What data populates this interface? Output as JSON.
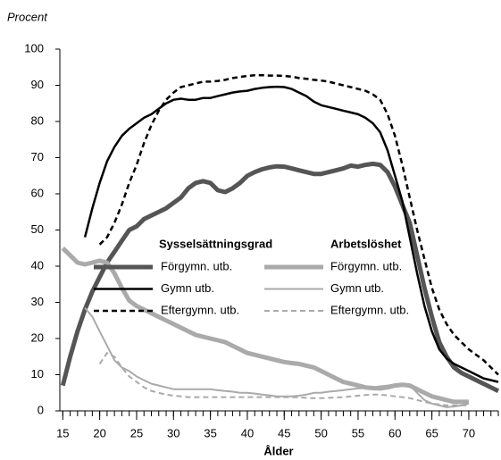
{
  "chart_data": {
    "type": "line",
    "y_label": "Procent",
    "x_label": "Ålder",
    "legend_groups": [
      "Sysselsättningsgrad",
      "Arbetslöshet"
    ],
    "x": [
      15,
      16,
      17,
      18,
      19,
      20,
      21,
      22,
      23,
      24,
      25,
      26,
      27,
      28,
      29,
      30,
      31,
      32,
      33,
      34,
      35,
      36,
      37,
      38,
      39,
      40,
      41,
      42,
      43,
      44,
      45,
      46,
      47,
      48,
      49,
      50,
      51,
      52,
      53,
      54,
      55,
      56,
      57,
      58,
      59,
      60,
      61,
      62,
      63,
      64,
      65,
      66,
      67,
      68,
      69,
      70,
      71,
      72,
      73,
      74
    ],
    "xlim": [
      14.6,
      74
    ],
    "ylim": [
      0,
      100
    ],
    "xticks": [
      15,
      20,
      25,
      30,
      35,
      40,
      45,
      50,
      55,
      60,
      65,
      70
    ],
    "yticks": [
      0,
      10,
      20,
      30,
      40,
      50,
      60,
      70,
      80,
      90,
      100
    ],
    "series": [
      {
        "name": "Förgymn. utb.",
        "group": 0,
        "color": "#555555",
        "width": 5,
        "dashed": false,
        "values": [
          7,
          15,
          22,
          28,
          33,
          37,
          41,
          44,
          47,
          50,
          51,
          53,
          54,
          55,
          56,
          57.5,
          59,
          61.5,
          63,
          63.5,
          63,
          61,
          60.5,
          61.5,
          63,
          65,
          66,
          66.8,
          67.3,
          67.6,
          67.5,
          67,
          66.5,
          66,
          65.5,
          65.5,
          66,
          66.5,
          67,
          67.8,
          67.5,
          68,
          68.3,
          68,
          66,
          62,
          57,
          52,
          43,
          34,
          26,
          19,
          15,
          12,
          10.5,
          9.5,
          8.5,
          7.5,
          6.5,
          5.5
        ]
      },
      {
        "name": "Gymn utb.",
        "group": 0,
        "color": "#000000",
        "width": 2.5,
        "dashed": false,
        "values": [
          null,
          null,
          null,
          48,
          56,
          63,
          69,
          73,
          76,
          78,
          79.5,
          81,
          82,
          83.5,
          85,
          86,
          86.3,
          86,
          86,
          86.5,
          86.5,
          87,
          87.5,
          88,
          88.3,
          88.5,
          89,
          89.3,
          89.5,
          89.6,
          89.5,
          89,
          88,
          87,
          85.5,
          84.5,
          84,
          83.5,
          83,
          82.5,
          82,
          81,
          79.5,
          77,
          72,
          65,
          58,
          48,
          38,
          29,
          22,
          17,
          14.5,
          13,
          12,
          11,
          10,
          9,
          8.5,
          8
        ]
      },
      {
        "name": "Eftergymn. utb.",
        "group": 0,
        "color": "#000000",
        "width": 2.5,
        "dashed": true,
        "values": [
          null,
          null,
          null,
          null,
          null,
          46,
          48,
          52,
          57,
          63,
          68,
          74,
          79,
          83,
          86,
          88,
          89.5,
          90,
          90.5,
          91,
          91,
          91.2,
          91.5,
          92,
          92.3,
          92.6,
          92.8,
          92.8,
          92.7,
          92.7,
          92.6,
          92.4,
          92,
          91.8,
          91.5,
          91.3,
          91,
          90.5,
          90,
          89.5,
          89,
          88.5,
          87.5,
          86,
          82,
          76,
          68,
          59,
          50,
          42,
          34,
          28,
          24,
          21,
          19,
          17,
          15.5,
          14,
          12,
          10
        ]
      },
      {
        "name": "Förgymn. utb.",
        "group": 1,
        "color": "#aaaaaa",
        "width": 5,
        "dashed": false,
        "values": [
          45,
          43,
          41,
          40.5,
          41,
          41.5,
          41,
          38,
          34,
          30.5,
          29,
          28,
          27,
          26,
          25,
          24,
          23,
          22,
          21,
          20.5,
          20,
          19.5,
          19,
          18,
          17,
          16,
          15.5,
          15,
          14.5,
          14,
          13.5,
          13.2,
          13,
          12.5,
          12,
          11,
          10,
          9,
          8,
          7.5,
          7,
          6.5,
          6.3,
          6.2,
          6.5,
          7,
          7.2,
          7,
          6,
          5,
          4,
          3.5,
          3,
          2.5,
          2.5,
          2.5,
          null,
          null,
          null,
          null
        ]
      },
      {
        "name": "Gymn utb.",
        "group": 1,
        "color": "#aaaaaa",
        "width": 2,
        "dashed": false,
        "values": [
          null,
          null,
          null,
          28.5,
          26,
          22,
          18,
          14,
          12,
          11,
          9.5,
          8.5,
          7.5,
          7,
          6.5,
          6,
          6,
          6,
          6,
          6,
          6,
          5.7,
          5.5,
          5.3,
          5,
          5,
          4.8,
          4.5,
          4.3,
          4,
          4,
          4,
          4.2,
          4.5,
          5,
          5,
          5.3,
          5.5,
          5.7,
          6,
          6.2,
          6.3,
          6.5,
          6.8,
          7,
          7.3,
          7.5,
          7,
          5,
          3,
          2,
          1.5,
          1,
          1.2,
          1.5,
          2,
          null,
          null,
          null,
          null
        ]
      },
      {
        "name": "Eftergymn. utb.",
        "group": 1,
        "color": "#aaaaaa",
        "width": 2,
        "dashed": true,
        "values": [
          null,
          null,
          null,
          null,
          null,
          13,
          16,
          15,
          12,
          9.5,
          8,
          6.5,
          5.5,
          5,
          4.5,
          4.2,
          4,
          3.8,
          3.8,
          3.8,
          3.8,
          3.8,
          3.8,
          3.8,
          3.8,
          3.8,
          3.8,
          3.8,
          3.8,
          3.8,
          3.8,
          3.8,
          3.7,
          3.6,
          3.5,
          3.5,
          3.6,
          3.7,
          3.8,
          4,
          4.2,
          4.4,
          4.5,
          4.5,
          4.3,
          4,
          3.8,
          3.5,
          3,
          2.5,
          2,
          1.8,
          1.5,
          1.5,
          1.5,
          1.5,
          null,
          null,
          null,
          null
        ]
      }
    ]
  }
}
